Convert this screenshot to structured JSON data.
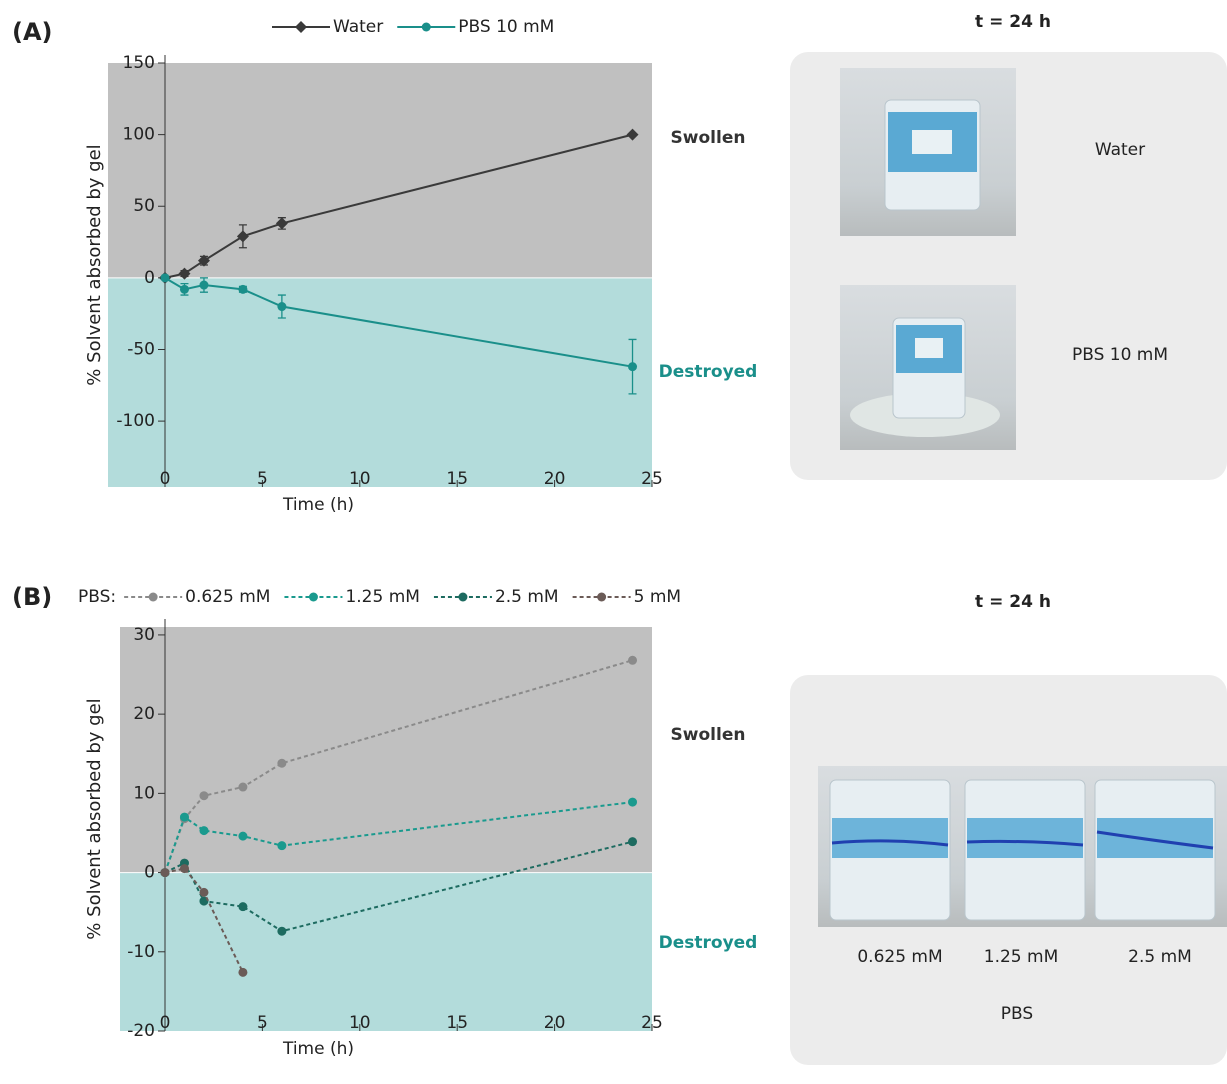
{
  "chart_data": [
    {
      "type": "line",
      "label": "(A)",
      "y_label": "% Solvent absorbed by gel",
      "x_label": "Time (h)",
      "x": [
        0,
        1,
        2,
        4,
        6,
        24
      ],
      "series": [
        {
          "name": "Water",
          "color": "#3a3a3a",
          "marker": "diamond",
          "values": [
            0,
            3,
            12,
            29,
            38,
            100
          ],
          "errors": [
            null,
            2,
            3,
            8,
            4,
            null
          ]
        },
        {
          "name": "PBS 10 mM",
          "color": "#1a8f8a",
          "marker": "circle",
          "values": [
            0,
            -8,
            -5,
            -8,
            -20,
            -62
          ],
          "errors": [
            null,
            4,
            5,
            2,
            8,
            19
          ]
        }
      ],
      "xlim": [
        0,
        25
      ],
      "xticks": [
        0,
        5,
        10,
        15,
        20,
        25
      ],
      "ylim": [
        -146,
        150
      ],
      "yticks": [
        -100,
        -50,
        0,
        50,
        100,
        150
      ],
      "region_colors": [
        "#c0c0c0",
        "#b3dcdb"
      ],
      "annotations": [
        {
          "text": "Swollen",
          "color": "#333333"
        },
        {
          "text": "Destroyed",
          "color": "#1a8f8a"
        }
      ]
    },
    {
      "type": "line",
      "label": "(B)",
      "legend_title": "PBS:",
      "y_label": "% Solvent absorbed by gel",
      "x_label": "Time (h)",
      "line_style": "dashed",
      "x": [
        0,
        1,
        2,
        4,
        6,
        24
      ],
      "series": [
        {
          "name": "0.625 mM",
          "color": "#8a8a8a",
          "marker": "circle",
          "values": [
            0,
            6.8,
            9.7,
            10.8,
            13.8,
            26.8
          ]
        },
        {
          "name": "1.25 mM",
          "color": "#1a9a8e",
          "marker": "circle",
          "values": [
            0,
            7,
            5.3,
            4.6,
            3.4,
            8.9
          ]
        },
        {
          "name": "2.5 mM",
          "color": "#1d6b60",
          "marker": "circle",
          "values": [
            0,
            1.2,
            -3.6,
            -4.3,
            -7.4,
            3.9
          ]
        },
        {
          "name": "5 mM",
          "color": "#6b5b57",
          "marker": "circle",
          "values": [
            0,
            0.5,
            -2.5,
            -12.6,
            null,
            null
          ]
        }
      ],
      "xlim": [
        0,
        25
      ],
      "xticks": [
        0,
        5,
        10,
        15,
        20,
        25
      ],
      "ylim": [
        -20,
        31
      ],
      "yticks": [
        -20,
        -10,
        0,
        10,
        20,
        30
      ],
      "region_colors": [
        "#c0c0c0",
        "#b3dcdb"
      ],
      "annotations": [
        {
          "text": "Swollen",
          "color": "#333333"
        },
        {
          "text": "Destroyed",
          "color": "#1a8f8a"
        }
      ]
    }
  ],
  "photos": [
    {
      "title": "t = 24 h",
      "labels": [
        "Water",
        "PBS 10 mM"
      ]
    },
    {
      "title": "t = 24 h",
      "labels": [
        "0.625 mM",
        "1.25 mM",
        "2.5 mM"
      ],
      "caption": "PBS"
    }
  ]
}
